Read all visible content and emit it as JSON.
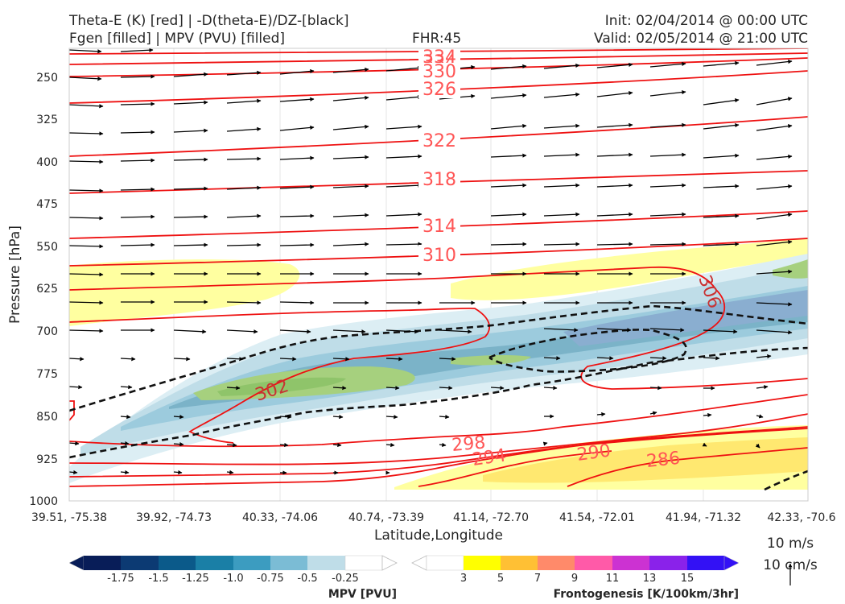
{
  "header": {
    "title_line1": "Theta-E (K) [red] | -D(theta-E)/DZ-[black]",
    "title_line2": "Fgen [filled] | MPV (PVU) [filled]",
    "fhr": "FHR:45",
    "init": "Init: 02/04/2014 @ 00:00 UTC",
    "valid": "Valid: 02/05/2014 @ 21:00 UTC"
  },
  "chart_data": {
    "type": "cross-section",
    "xlabel": "Latitude,Longitude",
    "ylabel": "Pressure [hPa]",
    "x_ticks": [
      "39.51, -75.38",
      "39.92, -74.73",
      "40.33, -74.06",
      "40.74, -73.39",
      "41.14, -72.70",
      "41.54, -72.01",
      "41.94, -71.32",
      "42.33, -70.6"
    ],
    "y_ticks": [
      250,
      325,
      400,
      475,
      550,
      625,
      700,
      775,
      850,
      925,
      1000
    ],
    "y_range": [
      175,
      1000
    ],
    "y_inverted": true,
    "theta_e_contours": [
      {
        "label": "334",
        "p_left": 195,
        "p_right": 190
      },
      {
        "label": "334",
        "p_left": 212,
        "p_right": 198
      },
      {
        "label": "330",
        "p_left": 248,
        "p_right": 218
      },
      {
        "label": "326",
        "p_left": 290,
        "p_right": 240
      },
      {
        "label": "322",
        "p_left": 370,
        "p_right": 315
      },
      {
        "label": "318",
        "p_left": 432,
        "p_right": 405
      },
      {
        "label": "314",
        "p_left": 510,
        "p_right": 458
      },
      {
        "label": "310",
        "p_left": 580,
        "p_right": 540
      },
      {
        "label": "306"
      },
      {
        "label": "302"
      },
      {
        "label": "298"
      },
      {
        "label": "294"
      },
      {
        "label": "290"
      },
      {
        "label": "286"
      }
    ],
    "labels_shown": [
      "334",
      "334",
      "330",
      "326",
      "322",
      "318",
      "314",
      "310",
      "306",
      "302",
      "298",
      "294",
      "290",
      "286"
    ],
    "colorbars": [
      {
        "title": "MPV [PVU]",
        "ticks": [
          "-1.75",
          "-1.5",
          "-1.25",
          "-1.0",
          "-0.75",
          "-0.5",
          "-0.25"
        ],
        "colors": [
          "#081d58",
          "#0c3a73",
          "#0b5a8a",
          "#1a7fa6",
          "#3c9cc0",
          "#7bbcd5",
          "#bfdde8",
          "#ffffff"
        ]
      },
      {
        "title": "Frontogenesis [K/100km/3hr]",
        "ticks": [
          "3",
          "5",
          "7",
          "9",
          "11",
          "13",
          "15"
        ],
        "colors": [
          "#ffffff",
          "#ffff00",
          "#ffc034",
          "#ff8a6a",
          "#ff5aa8",
          "#cc32d2",
          "#8a22ea",
          "#3311f5"
        ]
      }
    ],
    "vector_key": [
      "10 m/s",
      "10 cm/s"
    ]
  }
}
